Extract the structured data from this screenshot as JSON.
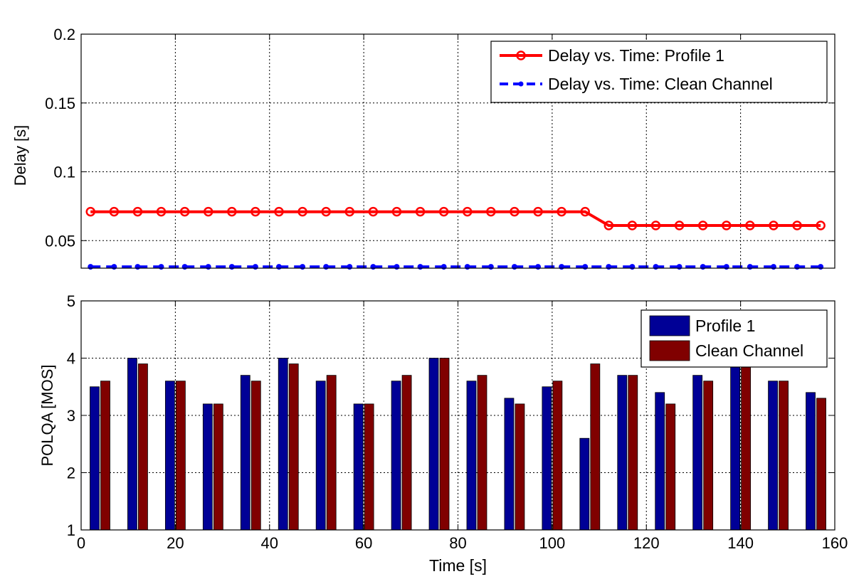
{
  "chart_data": [
    {
      "type": "line",
      "xlabel": "",
      "ylabel": "Delay [s]",
      "xlim": [
        0,
        160
      ],
      "ylim": [
        0.03,
        0.2
      ],
      "yticks": [
        0.05,
        0.1,
        0.15,
        0.2
      ],
      "ytick_labels": [
        "0.05",
        "0.1",
        "0.15",
        "0.2"
      ],
      "grid": true,
      "legend": "top-right",
      "series": [
        {
          "name": "Delay vs. Time: Profile 1",
          "color": "#ff0000",
          "style": "solid",
          "marker": "circle",
          "x": [
            2,
            7,
            12,
            17,
            22,
            27,
            32,
            37,
            42,
            47,
            52,
            57,
            62,
            67,
            72,
            77,
            82,
            87,
            92,
            97,
            102,
            107,
            112,
            117,
            122,
            127,
            132,
            137,
            142,
            147,
            152,
            157
          ],
          "y": [
            0.071,
            0.071,
            0.071,
            0.071,
            0.071,
            0.071,
            0.071,
            0.071,
            0.071,
            0.071,
            0.071,
            0.071,
            0.071,
            0.071,
            0.071,
            0.071,
            0.071,
            0.071,
            0.071,
            0.071,
            0.071,
            0.071,
            0.061,
            0.061,
            0.061,
            0.061,
            0.061,
            0.061,
            0.061,
            0.061,
            0.061,
            0.061
          ]
        },
        {
          "name": "Delay vs. Time: Clean Channel",
          "color": "#0000ff",
          "style": "dashed",
          "marker": "dot",
          "x": [
            2,
            7,
            12,
            17,
            22,
            27,
            32,
            37,
            42,
            47,
            52,
            57,
            62,
            67,
            72,
            77,
            82,
            87,
            92,
            97,
            102,
            107,
            112,
            117,
            122,
            127,
            132,
            137,
            142,
            147,
            152,
            157
          ],
          "y": [
            0.031,
            0.031,
            0.031,
            0.031,
            0.031,
            0.031,
            0.031,
            0.031,
            0.031,
            0.031,
            0.031,
            0.031,
            0.031,
            0.031,
            0.031,
            0.031,
            0.031,
            0.031,
            0.031,
            0.031,
            0.031,
            0.031,
            0.031,
            0.031,
            0.031,
            0.031,
            0.031,
            0.031,
            0.031,
            0.031,
            0.031,
            0.031
          ]
        }
      ]
    },
    {
      "type": "bar",
      "xlabel": "Time [s]",
      "ylabel": "POLQA [MOS]",
      "xlim": [
        0,
        160
      ],
      "ylim": [
        1,
        5
      ],
      "xticks": [
        0,
        20,
        40,
        60,
        80,
        100,
        120,
        140,
        160
      ],
      "xtick_labels": [
        "0",
        "20",
        "40",
        "60",
        "80",
        "100",
        "120",
        "140",
        "160"
      ],
      "yticks": [
        1,
        2,
        3,
        4,
        5
      ],
      "ytick_labels": [
        "1",
        "2",
        "3",
        "4",
        "5"
      ],
      "grid": true,
      "legend": "top-right",
      "x": [
        4,
        12,
        20,
        28,
        36,
        44,
        52,
        60,
        68,
        76,
        84,
        92,
        100,
        108,
        116,
        124,
        132,
        140,
        148,
        156
      ],
      "series": [
        {
          "name": "Profile 1",
          "color": "#000096",
          "values": [
            3.5,
            4.0,
            3.6,
            3.2,
            3.7,
            4.0,
            3.6,
            3.2,
            3.6,
            4.0,
            3.6,
            3.3,
            3.5,
            2.6,
            3.7,
            3.4,
            3.7,
            3.9,
            3.6,
            3.4
          ]
        },
        {
          "name": "Clean Channel",
          "color": "#800000",
          "values": [
            3.6,
            3.9,
            3.6,
            3.2,
            3.6,
            3.9,
            3.7,
            3.2,
            3.7,
            4.0,
            3.7,
            3.2,
            3.6,
            3.9,
            3.7,
            3.2,
            3.6,
            3.9,
            3.6,
            3.3
          ]
        }
      ]
    }
  ]
}
